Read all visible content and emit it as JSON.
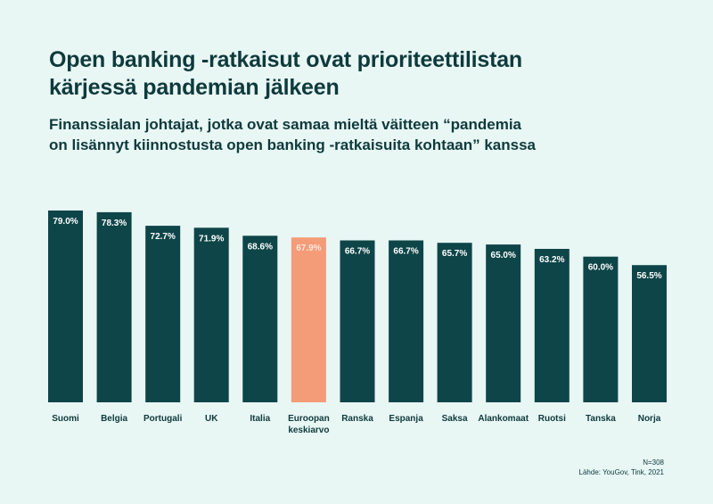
{
  "title_line1": "Open banking -ratkaisut ovat prioriteettilistan",
  "title_line2": "kärjessä pandemian jälkeen",
  "subtitle_line1": "Finanssialan johtajat, jotka ovat samaa mieltä väitteen “pandemia",
  "subtitle_line2": "on lisännyt kiinnostusta open banking -ratkaisuita kohtaan” kanssa",
  "sample_size": "N=308",
  "source": "Lähde: YouGov, Tink, 2021",
  "colors": {
    "background": "#e8f6f4",
    "bar": "#0e4548",
    "highlight": "#f49b78",
    "highlight_label": "#fde6da",
    "text": "#0e3a3c"
  },
  "chart_data": {
    "type": "bar",
    "title": "Open banking -ratkaisut ovat prioriteettilistan kärjessä pandemian jälkeen",
    "subtitle": "Finanssialan johtajat, jotka ovat samaa mieltä väitteen “pandemia on lisännyt kiinnostusta open banking -ratkaisuita kohtaan” kanssa",
    "categories": [
      "Suomi",
      "Belgia",
      "Portugali",
      "UK",
      "Italia",
      "Euroopan keskiarvo",
      "Ranska",
      "Espanja",
      "Saksa",
      "Alankomaat",
      "Ruotsi",
      "Tanska",
      "Norja"
    ],
    "category_lines": [
      [
        "Suomi"
      ],
      [
        "Belgia"
      ],
      [
        "Portugali"
      ],
      [
        "UK"
      ],
      [
        "Italia"
      ],
      [
        "Euroopan",
        "keskiarvo"
      ],
      [
        "Ranska"
      ],
      [
        "Espanja"
      ],
      [
        "Saksa"
      ],
      [
        "Alankomaat"
      ],
      [
        "Ruotsi"
      ],
      [
        "Tanska"
      ],
      [
        "Norja"
      ]
    ],
    "values": [
      79.0,
      78.3,
      72.7,
      71.9,
      68.6,
      67.9,
      66.7,
      66.7,
      65.7,
      65.0,
      63.2,
      60.0,
      56.5
    ],
    "labels": [
      "79.0%",
      "78.3%",
      "72.7%",
      "71.9%",
      "68.6%",
      "67.9%",
      "66.7%",
      "66.7%",
      "65.7%",
      "65.0%",
      "63.2%",
      "60.0%",
      "56.5%"
    ],
    "highlight_index": 5,
    "ylim": [
      0,
      79.0
    ],
    "xlabel": "",
    "ylabel": "",
    "grid": false
  }
}
